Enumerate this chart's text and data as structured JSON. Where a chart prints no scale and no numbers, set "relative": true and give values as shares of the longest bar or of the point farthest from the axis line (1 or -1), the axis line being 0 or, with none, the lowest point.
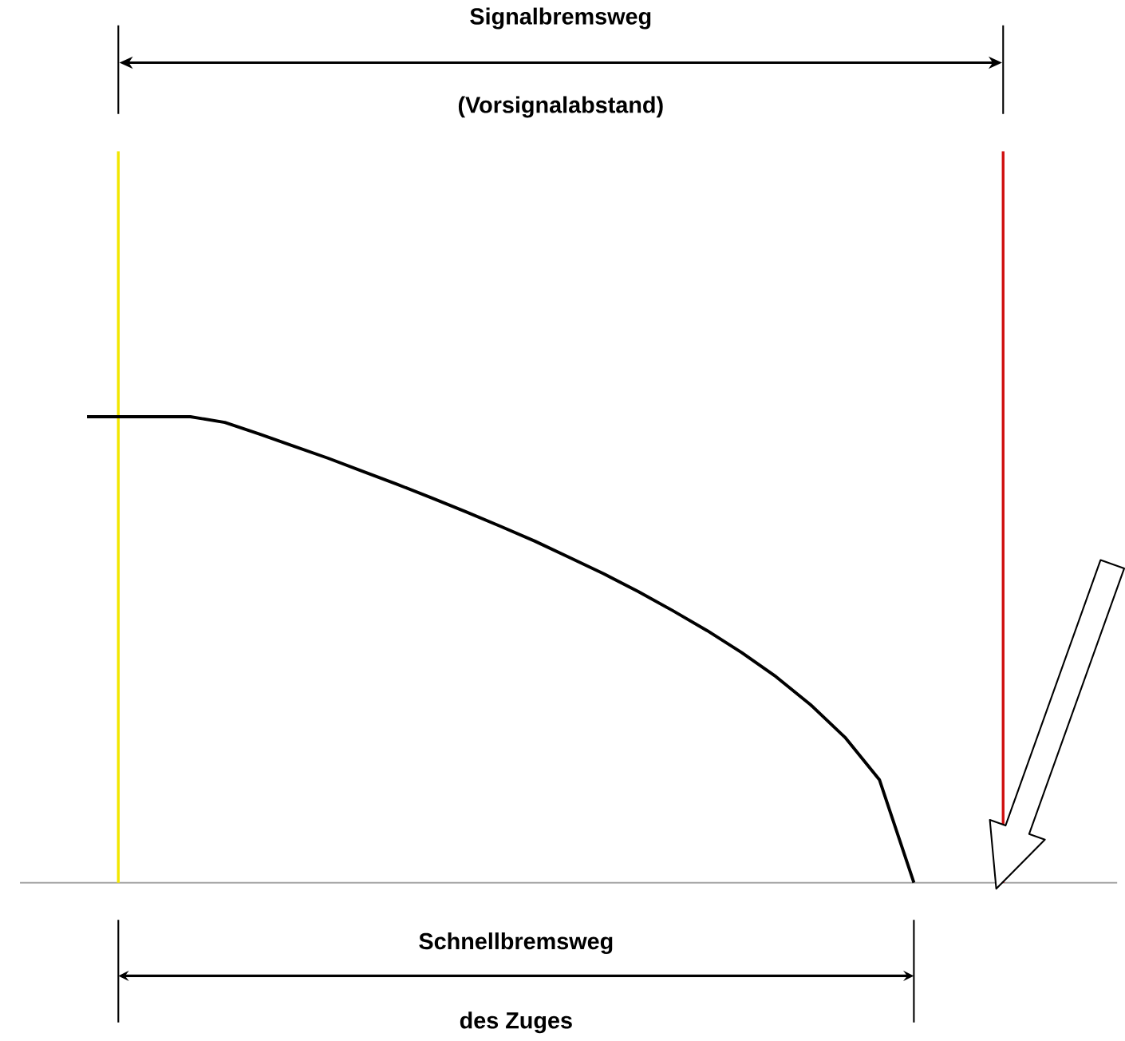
{
  "chart_data": {
    "type": "line",
    "relative": true,
    "color": "#000000",
    "categories": [
      null,
      null,
      null,
      null,
      null,
      null,
      null,
      null,
      null,
      null,
      null,
      null,
      null,
      null,
      null,
      null,
      null,
      null,
      null,
      null,
      null,
      null,
      null,
      null,
      null
    ],
    "values": [
      1,
      1,
      1,
      1,
      0.988,
      0.963,
      0.937,
      0.911,
      0.883,
      0.855,
      0.826,
      0.796,
      0.765,
      0.733,
      0.698,
      0.663,
      0.625,
      0.584,
      0.541,
      0.494,
      0.442,
      0.382,
      0.312,
      0.221,
      0
    ],
    "annotations": [
      "Signalbremsweg",
      "(Vorsignalabstand)",
      "Schnellbremsweg",
      "des Zuges"
    ]
  }
}
